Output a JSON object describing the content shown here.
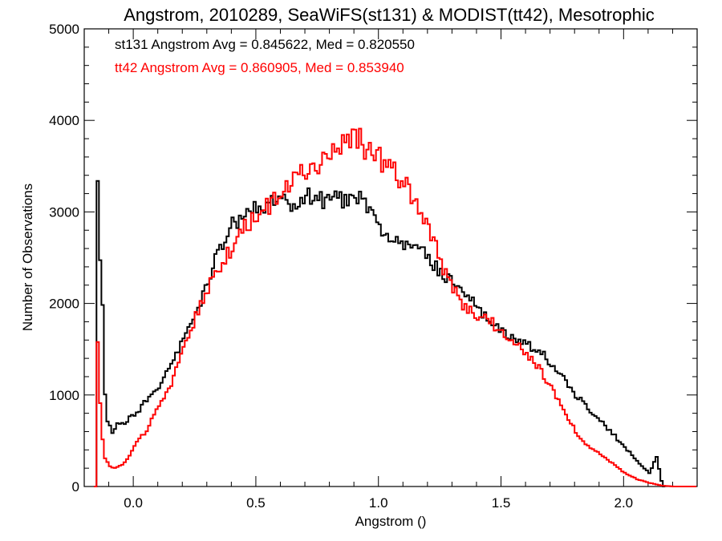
{
  "chart_data": {
    "type": "line",
    "title": "Angstrom, 2010289, SeaWiFS(st131) & MODIST(tt42), Mesotrophic",
    "xlabel": "Angstrom ()",
    "ylabel": "Number of Observations",
    "xlim": [
      -0.2,
      2.3
    ],
    "ylim": [
      0,
      5000
    ],
    "xticks": [
      0.0,
      0.5,
      1.0,
      1.5,
      2.0
    ],
    "xtick_labels": [
      "0.0",
      "0.5",
      "1.0",
      "1.5",
      "2.0"
    ],
    "yticks": [
      0,
      1000,
      2000,
      3000,
      4000,
      5000
    ],
    "ytick_labels": [
      "0",
      "1000",
      "2000",
      "3000",
      "4000",
      "5000"
    ],
    "grid": false,
    "annotations": [
      {
        "text": "st131 Angstrom Avg = 0.845622, Med = 0.820550",
        "color": "#000000"
      },
      {
        "text": "tt42 Angstrom Avg = 0.860905, Med = 0.853940",
        "color": "#ff0000"
      }
    ],
    "series": [
      {
        "color": "#000000",
        "points": [
          [
            -0.16,
            0
          ],
          [
            -0.155,
            1950
          ],
          [
            -0.15,
            3320
          ],
          [
            -0.145,
            2520
          ],
          [
            -0.14,
            2450
          ],
          [
            -0.13,
            2000
          ],
          [
            -0.12,
            1000
          ],
          [
            -0.11,
            700
          ],
          [
            -0.1,
            650
          ],
          [
            -0.09,
            580
          ],
          [
            -0.07,
            700
          ],
          [
            -0.05,
            680
          ],
          [
            -0.03,
            720
          ],
          [
            0.0,
            800
          ],
          [
            0.02,
            840
          ],
          [
            0.05,
            950
          ],
          [
            0.08,
            1020
          ],
          [
            0.1,
            1100
          ],
          [
            0.12,
            1200
          ],
          [
            0.15,
            1350
          ],
          [
            0.2,
            1600
          ],
          [
            0.25,
            1900
          ],
          [
            0.3,
            2250
          ],
          [
            0.35,
            2600
          ],
          [
            0.4,
            2850
          ],
          [
            0.45,
            3000
          ],
          [
            0.5,
            3060
          ],
          [
            0.55,
            3100
          ],
          [
            0.6,
            3080
          ],
          [
            0.65,
            3120
          ],
          [
            0.7,
            3190
          ],
          [
            0.75,
            3140
          ],
          [
            0.8,
            3100
          ],
          [
            0.85,
            3150
          ],
          [
            0.9,
            3180
          ],
          [
            0.95,
            3050
          ],
          [
            1.0,
            2850
          ],
          [
            1.05,
            2750
          ],
          [
            1.1,
            2680
          ],
          [
            1.15,
            2620
          ],
          [
            1.2,
            2500
          ],
          [
            1.25,
            2350
          ],
          [
            1.3,
            2200
          ],
          [
            1.35,
            2080
          ],
          [
            1.4,
            1960
          ],
          [
            1.45,
            1820
          ],
          [
            1.5,
            1700
          ],
          [
            1.55,
            1630
          ],
          [
            1.6,
            1560
          ],
          [
            1.65,
            1480
          ],
          [
            1.7,
            1350
          ],
          [
            1.75,
            1200
          ],
          [
            1.8,
            1000
          ],
          [
            1.85,
            850
          ],
          [
            1.9,
            720
          ],
          [
            1.95,
            580
          ],
          [
            2.0,
            430
          ],
          [
            2.05,
            280
          ],
          [
            2.1,
            150
          ],
          [
            2.13,
            320
          ],
          [
            2.15,
            60
          ],
          [
            2.16,
            0
          ]
        ]
      },
      {
        "color": "#ff0000",
        "points": [
          [
            -0.16,
            0
          ],
          [
            -0.155,
            420
          ],
          [
            -0.15,
            1590
          ],
          [
            -0.145,
            700
          ],
          [
            -0.14,
            900
          ],
          [
            -0.13,
            500
          ],
          [
            -0.12,
            300
          ],
          [
            -0.1,
            220
          ],
          [
            -0.08,
            200
          ],
          [
            -0.05,
            230
          ],
          [
            -0.02,
            330
          ],
          [
            0.0,
            450
          ],
          [
            0.05,
            620
          ],
          [
            0.1,
            870
          ],
          [
            0.15,
            1100
          ],
          [
            0.2,
            1500
          ],
          [
            0.25,
            1850
          ],
          [
            0.3,
            2170
          ],
          [
            0.35,
            2420
          ],
          [
            0.4,
            2620
          ],
          [
            0.45,
            2820
          ],
          [
            0.5,
            2960
          ],
          [
            0.55,
            3080
          ],
          [
            0.6,
            3200
          ],
          [
            0.65,
            3320
          ],
          [
            0.7,
            3450
          ],
          [
            0.75,
            3540
          ],
          [
            0.8,
            3640
          ],
          [
            0.85,
            3740
          ],
          [
            0.9,
            3800
          ],
          [
            0.92,
            3820
          ],
          [
            0.95,
            3650
          ],
          [
            1.0,
            3580
          ],
          [
            1.05,
            3470
          ],
          [
            1.1,
            3320
          ],
          [
            1.15,
            3100
          ],
          [
            1.2,
            2820
          ],
          [
            1.25,
            2450
          ],
          [
            1.3,
            2150
          ],
          [
            1.35,
            1930
          ],
          [
            1.4,
            1880
          ],
          [
            1.45,
            1800
          ],
          [
            1.5,
            1700
          ],
          [
            1.55,
            1570
          ],
          [
            1.6,
            1450
          ],
          [
            1.65,
            1300
          ],
          [
            1.7,
            1070
          ],
          [
            1.75,
            850
          ],
          [
            1.8,
            600
          ],
          [
            1.85,
            440
          ],
          [
            1.9,
            350
          ],
          [
            1.95,
            250
          ],
          [
            2.0,
            150
          ],
          [
            2.05,
            80
          ],
          [
            2.1,
            40
          ],
          [
            2.15,
            10
          ],
          [
            2.2,
            0
          ]
        ]
      }
    ]
  }
}
